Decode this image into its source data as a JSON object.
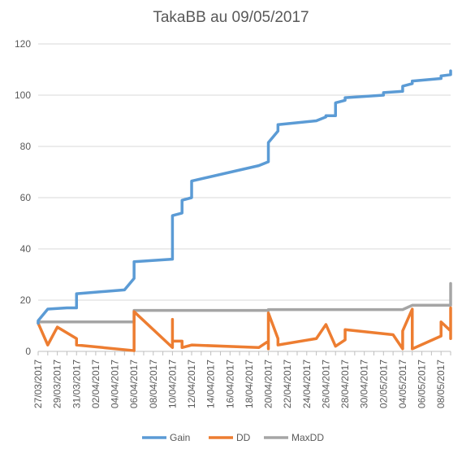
{
  "chart_data": {
    "type": "line",
    "title": "TakaBB au 09/05/2017",
    "xlabel": "",
    "ylabel": "",
    "ylim": [
      0,
      120
    ],
    "y_ticks": [
      0,
      20,
      40,
      60,
      80,
      100,
      120
    ],
    "x_range": [
      "2017-03-27",
      "2017-05-09"
    ],
    "x_tick_labels": [
      "27/03/2017",
      "29/03/2017",
      "31/03/2017",
      "02/04/2017",
      "04/04/2017",
      "06/04/2017",
      "08/04/2017",
      "10/04/2017",
      "12/04/2017",
      "14/04/2017",
      "16/04/2017",
      "18/04/2017",
      "20/04/2017",
      "22/04/2017",
      "24/04/2017",
      "26/04/2017",
      "28/04/2017",
      "30/04/2017",
      "02/05/2017",
      "04/05/2017",
      "06/05/2017",
      "08/05/2017"
    ],
    "grid": "horizontal",
    "legend_position": "bottom",
    "series": [
      {
        "name": "Gain",
        "color": "#5B9BD5",
        "points": [
          [
            "2017-03-27",
            11
          ],
          [
            "2017-03-27",
            12
          ],
          [
            "2017-03-28",
            16.5
          ],
          [
            "2017-03-30",
            17
          ],
          [
            "2017-03-31",
            17
          ],
          [
            "2017-03-31",
            22.5
          ],
          [
            "2017-04-05",
            24
          ],
          [
            "2017-04-06",
            28.5
          ],
          [
            "2017-04-06",
            35
          ],
          [
            "2017-04-10",
            36
          ],
          [
            "2017-04-10",
            53
          ],
          [
            "2017-04-11",
            54
          ],
          [
            "2017-04-11",
            59
          ],
          [
            "2017-04-12",
            60
          ],
          [
            "2017-04-12",
            66.5
          ],
          [
            "2017-04-19",
            72.5
          ],
          [
            "2017-04-20",
            74
          ],
          [
            "2017-04-20",
            81.5
          ],
          [
            "2017-04-21",
            86
          ],
          [
            "2017-04-21",
            88.5
          ],
          [
            "2017-04-25",
            90
          ],
          [
            "2017-04-26",
            91.5
          ],
          [
            "2017-04-26",
            92
          ],
          [
            "2017-04-27",
            92
          ],
          [
            "2017-04-27",
            97
          ],
          [
            "2017-04-28",
            98
          ],
          [
            "2017-04-28",
            99
          ],
          [
            "2017-05-02",
            100
          ],
          [
            "2017-05-02",
            101
          ],
          [
            "2017-05-04",
            101.5
          ],
          [
            "2017-05-04",
            103.5
          ],
          [
            "2017-05-05",
            104.5
          ],
          [
            "2017-05-05",
            105.5
          ],
          [
            "2017-05-08",
            106.5
          ],
          [
            "2017-05-08",
            107.5
          ],
          [
            "2017-05-09",
            108
          ],
          [
            "2017-05-09",
            109.5
          ]
        ]
      },
      {
        "name": "DD",
        "color": "#ED7D31",
        "points": [
          [
            "2017-03-27",
            11
          ],
          [
            "2017-03-28",
            2.5
          ],
          [
            "2017-03-29",
            9.5
          ],
          [
            "2017-03-31",
            5
          ],
          [
            "2017-03-31",
            2.5
          ],
          [
            "2017-04-06",
            0.3
          ],
          [
            "2017-04-06",
            15.5
          ],
          [
            "2017-04-10",
            1.5
          ],
          [
            "2017-04-10",
            12.5
          ],
          [
            "2017-04-10",
            4
          ],
          [
            "2017-04-11",
            4
          ],
          [
            "2017-04-11",
            1.5
          ],
          [
            "2017-04-12",
            2.5
          ],
          [
            "2017-04-19",
            1.5
          ],
          [
            "2017-04-20",
            4
          ],
          [
            "2017-04-20",
            4.5
          ],
          [
            "2017-04-20",
            1
          ],
          [
            "2017-04-20",
            15
          ],
          [
            "2017-04-21",
            5
          ],
          [
            "2017-04-21",
            2.5
          ],
          [
            "2017-04-25",
            5
          ],
          [
            "2017-04-26",
            10.5
          ],
          [
            "2017-04-27",
            2
          ],
          [
            "2017-04-28",
            4.5
          ],
          [
            "2017-04-28",
            8.5
          ],
          [
            "2017-05-03",
            6.5
          ],
          [
            "2017-05-04",
            1
          ],
          [
            "2017-05-04",
            8
          ],
          [
            "2017-05-05",
            16.5
          ],
          [
            "2017-05-05",
            1
          ],
          [
            "2017-05-08",
            6
          ],
          [
            "2017-05-08",
            11.5
          ],
          [
            "2017-05-09",
            8
          ],
          [
            "2017-05-09",
            5
          ],
          [
            "2017-05-09",
            17
          ]
        ]
      },
      {
        "name": "MaxDD",
        "color": "#A5A5A5",
        "points": [
          [
            "2017-03-27",
            11.5
          ],
          [
            "2017-04-06",
            11.5
          ],
          [
            "2017-04-06",
            16
          ],
          [
            "2017-04-20",
            16
          ],
          [
            "2017-04-20",
            16.3
          ],
          [
            "2017-05-04",
            16.3
          ],
          [
            "2017-05-05",
            18
          ],
          [
            "2017-05-09",
            18
          ],
          [
            "2017-05-09",
            26.5
          ]
        ]
      }
    ]
  }
}
